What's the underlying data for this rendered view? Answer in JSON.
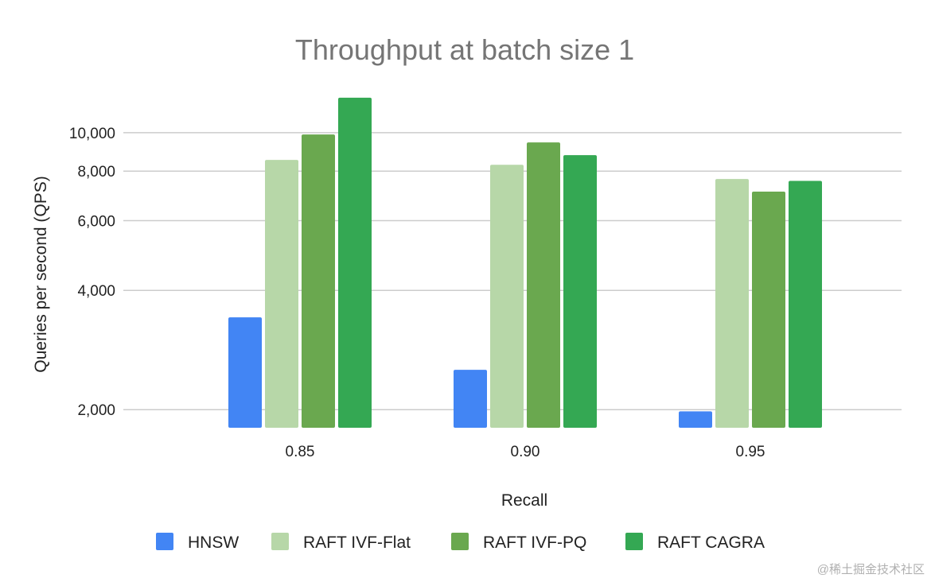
{
  "chart_data": {
    "type": "bar",
    "title": "Throughput at batch size 1",
    "xlabel": "Recall",
    "ylabel": "Queries per second (QPS)",
    "yscale": "log",
    "ylim": [
      1800,
      13000
    ],
    "yticks": [
      2000,
      4000,
      6000,
      8000,
      10000
    ],
    "ytick_labels": [
      "2,000",
      "4,000",
      "6,000",
      "8,000",
      "10,000"
    ],
    "grid": true,
    "legend_position": "bottom",
    "categories": [
      "0.85",
      "0.90",
      "0.95"
    ],
    "series": [
      {
        "name": "HNSW",
        "color": "#4285f4",
        "values": [
          3420,
          2520,
          1980
        ]
      },
      {
        "name": "RAFT IVF-Flat",
        "color": "#b7d7a8",
        "values": [
          8540,
          8300,
          7640
        ]
      },
      {
        "name": "RAFT IVF-PQ",
        "color": "#6aa84f",
        "values": [
          9900,
          9450,
          7100
        ]
      },
      {
        "name": "RAFT CAGRA",
        "color": "#34a853",
        "values": [
          12260,
          8780,
          7560
        ]
      }
    ]
  },
  "watermark": "@稀土掘金技术社区"
}
